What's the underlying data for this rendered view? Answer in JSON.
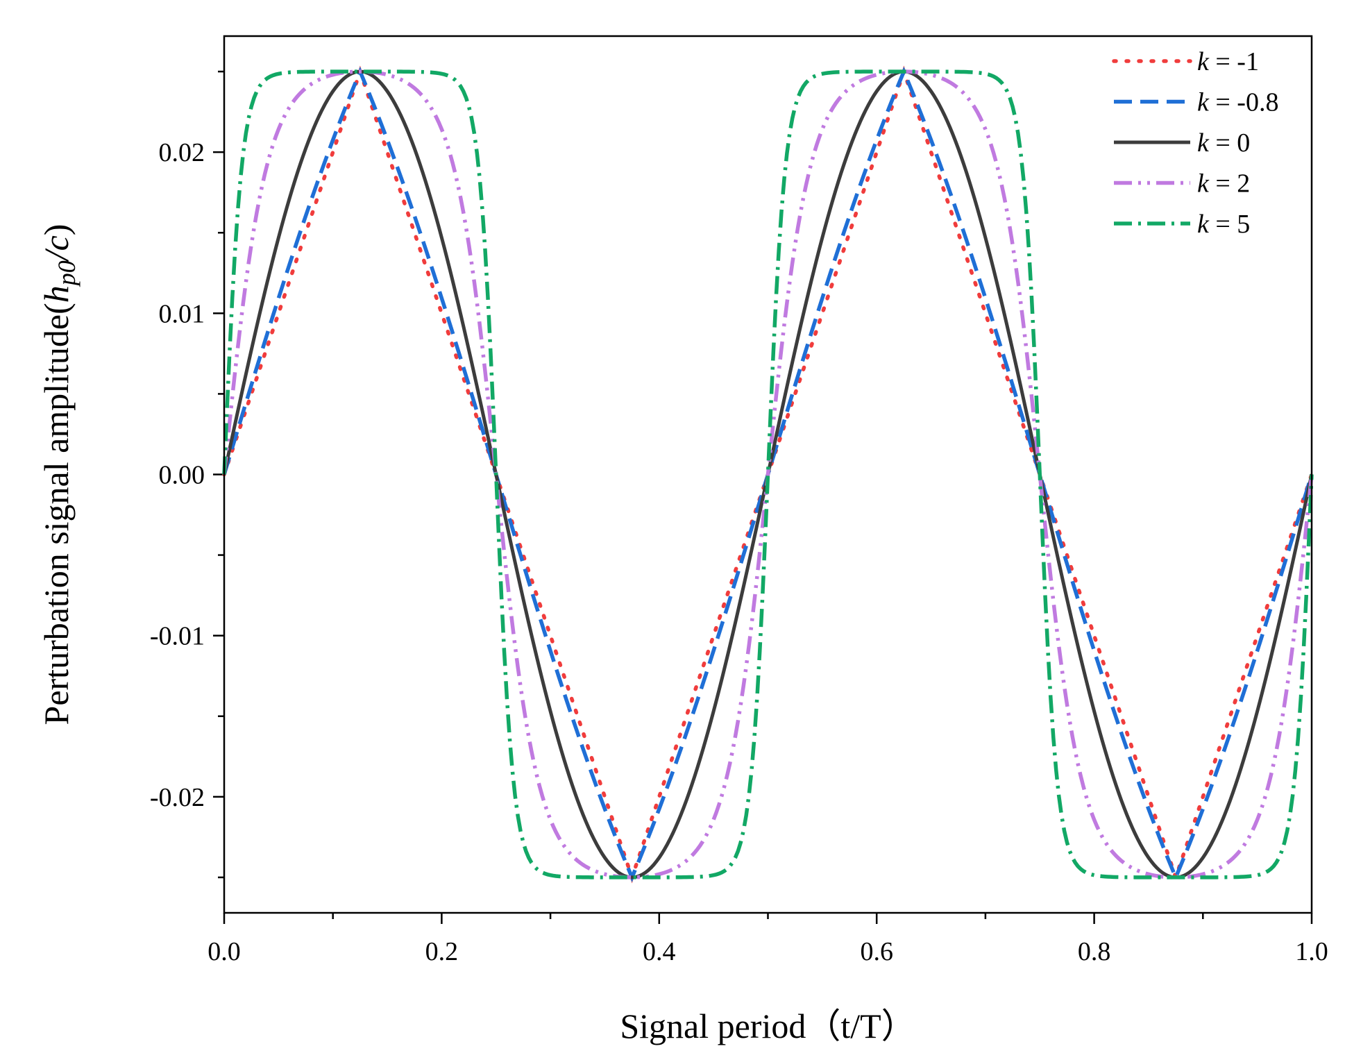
{
  "chart_data": {
    "type": "line",
    "xlabel": "Signal period（t/T）",
    "ylabel": {
      "prefix": "Perturbation signal amplitude(",
      "h": "h",
      "sub": "p0",
      "suffix_var": "/c",
      "close": ")"
    },
    "xlim": [
      0,
      1
    ],
    "ylim": [
      -0.0272,
      0.0272
    ],
    "xticks": [
      0.0,
      0.2,
      0.4,
      0.6,
      0.8,
      1.0
    ],
    "xtick_labels": [
      "0.0",
      "0.2",
      "0.4",
      "0.6",
      "0.8",
      "1.0"
    ],
    "yticks": [
      -0.02,
      -0.01,
      0.0,
      0.01,
      0.02
    ],
    "ytick_labels": [
      "-0.02",
      "-0.01",
      "0.00",
      "0.01",
      "0.02"
    ],
    "amplitude": 0.025,
    "period": 0.5,
    "legend_position": "top-right",
    "series": [
      {
        "name": "k = -1",
        "k_symbol": "k",
        "k_rest": " = -1",
        "k": -1,
        "color": "#f03c3c",
        "dash": "dot"
      },
      {
        "name": "k = -0.8",
        "k_symbol": "k",
        "k_rest": " = -0.8",
        "k": -0.8,
        "color": "#1f6fd6",
        "dash": "dash"
      },
      {
        "name": "k = 0",
        "k_symbol": "k",
        "k_rest": " = 0",
        "k": 0,
        "color": "#3c3c3c",
        "dash": "solid"
      },
      {
        "name": "k = 2",
        "k_symbol": "k",
        "k_rest": " = 2",
        "k": 2,
        "color": "#c07ae0",
        "dash": "dashdotdot"
      },
      {
        "name": "k = 5",
        "k_symbol": "k",
        "k_rest": " = 5",
        "k": 5,
        "color": "#12a865",
        "dash": "dashdot"
      }
    ]
  }
}
